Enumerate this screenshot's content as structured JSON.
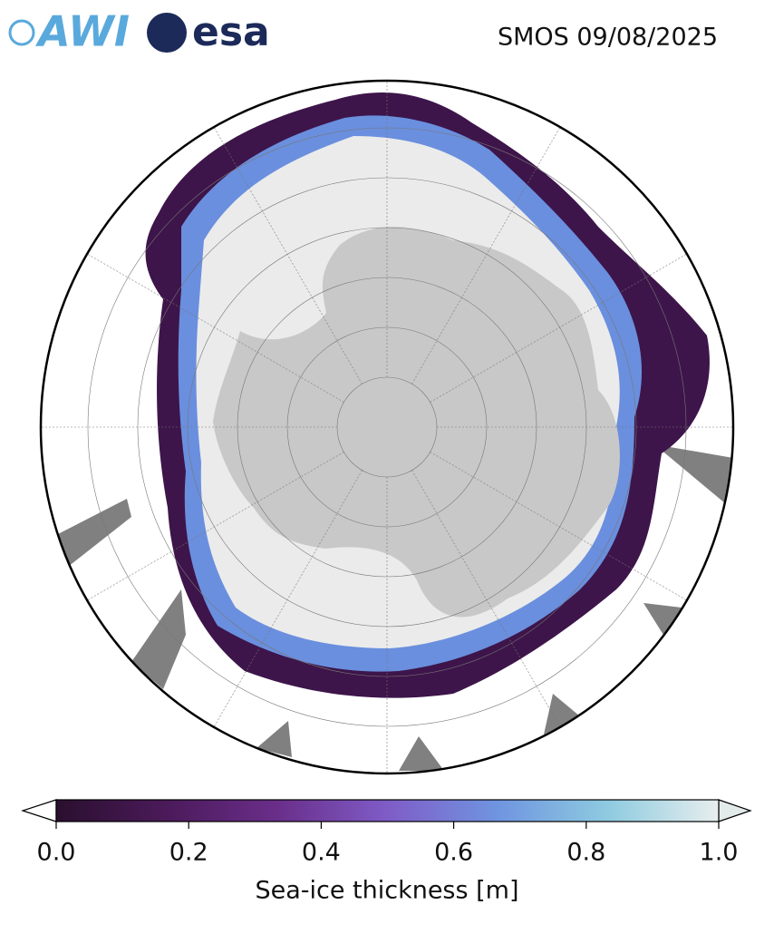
{
  "header": {
    "logo_awi": "AWI",
    "logo_esa": "esa",
    "title": "SMOS 09/08/2025"
  },
  "colorbar": {
    "label": "Sea-ice thickness [m]",
    "xlim": [
      0,
      1
    ],
    "xticks": [
      {
        "value": 0,
        "label": "0.0"
      },
      0.2,
      0.4,
      0.6,
      0.8,
      {
        "value": 1,
        "label": "1.0"
      }
    ],
    "colors": [
      "#2a0f2e",
      "#4b1a5a",
      "#6a2e8a",
      "#7f5cc7",
      "#6f95e0",
      "#8ecbe0",
      "#e8eeee"
    ]
  }
}
